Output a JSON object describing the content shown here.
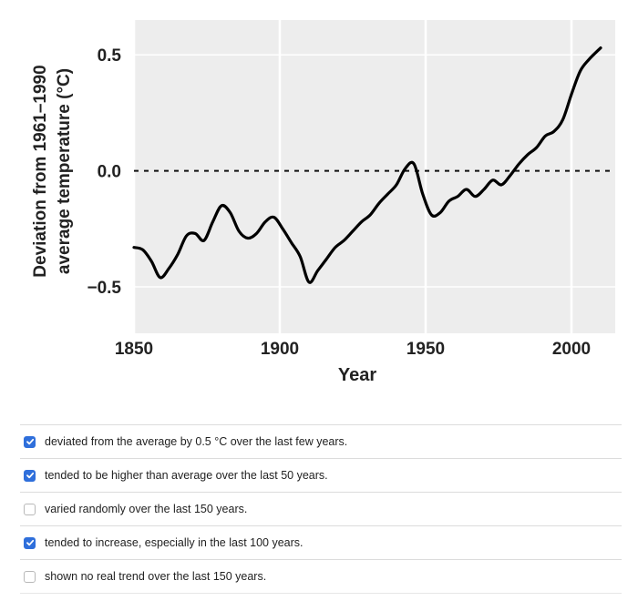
{
  "chart_data": {
    "type": "line",
    "xlabel": "Year",
    "ylabel": [
      "Deviation from 1961–1990",
      "average temperature (°C)"
    ],
    "xlim": [
      1850,
      2015
    ],
    "ylim": [
      -0.7,
      0.65
    ],
    "x_ticks": [
      1850,
      1900,
      1950,
      2000
    ],
    "x_tick_labels": [
      "1850",
      "1900",
      "1950",
      "2000"
    ],
    "y_ticks": [
      0.5,
      0.0,
      -0.5
    ],
    "y_tick_labels": [
      "0.5",
      "0.0",
      "−0.5"
    ],
    "reference_line": {
      "y": 0.0,
      "style": "dashed"
    },
    "grid": true,
    "plot_background": "#ededed",
    "line_color": "#000000",
    "series": [
      {
        "x": [
          1850,
          1853,
          1856,
          1859,
          1862,
          1865,
          1868,
          1871,
          1874,
          1877,
          1880,
          1883,
          1886,
          1889,
          1892,
          1895,
          1898,
          1901,
          1904,
          1907,
          1910,
          1913,
          1916,
          1919,
          1922,
          1925,
          1928,
          1931,
          1934,
          1937,
          1940,
          1943,
          1946,
          1949,
          1952,
          1955,
          1958,
          1961,
          1964,
          1967,
          1970,
          1973,
          1976,
          1979,
          1982,
          1985,
          1988,
          1991,
          1994,
          1997,
          2000,
          2003,
          2006,
          2010
        ],
        "y": [
          -0.33,
          -0.34,
          -0.39,
          -0.46,
          -0.42,
          -0.36,
          -0.28,
          -0.27,
          -0.3,
          -0.22,
          -0.15,
          -0.18,
          -0.26,
          -0.29,
          -0.27,
          -0.22,
          -0.2,
          -0.25,
          -0.31,
          -0.37,
          -0.48,
          -0.43,
          -0.38,
          -0.33,
          -0.3,
          -0.26,
          -0.22,
          -0.19,
          -0.14,
          -0.1,
          -0.06,
          0.01,
          0.03,
          -0.1,
          -0.19,
          -0.18,
          -0.13,
          -0.11,
          -0.08,
          -0.11,
          -0.08,
          -0.04,
          -0.06,
          -0.02,
          0.03,
          0.07,
          0.1,
          0.15,
          0.17,
          0.22,
          0.33,
          0.43,
          0.48,
          0.53
        ]
      }
    ]
  },
  "options": [
    {
      "label": "deviated from the average by 0.5 °C over the last few years.",
      "checked": true
    },
    {
      "label": "tended to be higher than average over the last 50 years.",
      "checked": true
    },
    {
      "label": "varied randomly over the last 150 years.",
      "checked": false
    },
    {
      "label": "tended to increase, especially in the last 100 years.",
      "checked": true
    },
    {
      "label": "shown no real trend over the last 150 years.",
      "checked": false
    }
  ],
  "colors": {
    "check_blue": "#2f6fdb"
  }
}
